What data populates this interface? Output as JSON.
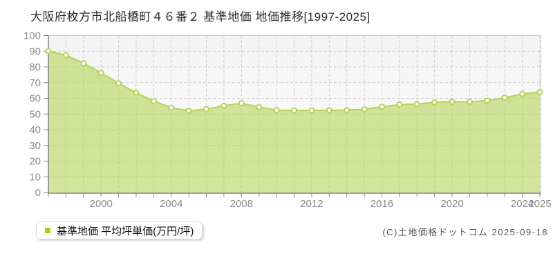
{
  "chart_data": {
    "type": "area",
    "title": "大阪府枚方市北船橋町４６番２ 基準地価 地価推移[1997-2025]",
    "categories": [
      1997,
      1998,
      1999,
      2000,
      2001,
      2002,
      2003,
      2004,
      2005,
      2006,
      2007,
      2008,
      2009,
      2010,
      2011,
      2012,
      2013,
      2014,
      2015,
      2016,
      2017,
      2018,
      2019,
      2020,
      2021,
      2022,
      2023,
      2024,
      2025
    ],
    "series": [
      {
        "name": "基準地価 平均坪単価(万円/坪)",
        "values": [
          90.1,
          87.5,
          82.3,
          76.2,
          69.6,
          63.5,
          58.2,
          54.0,
          52.1,
          53.1,
          55.3,
          56.9,
          54.4,
          52.4,
          52.3,
          52.3,
          52.4,
          52.5,
          53.0,
          54.6,
          56.0,
          56.3,
          57.4,
          57.8,
          57.8,
          58.5,
          60.4,
          62.8,
          64.0
        ]
      }
    ],
    "xlabel": "",
    "ylabel": "",
    "ylim": [
      0,
      100
    ],
    "y_tick_step": 10,
    "x_labeled_ticks": [
      2000,
      2004,
      2008,
      2012,
      2016,
      2020,
      2024,
      2025
    ],
    "grid": true,
    "legend_position": "bottom-left",
    "colors": {
      "area_fill": "#b5d457",
      "area_fill_opacity": "0.6",
      "line": "#b3d355",
      "marker_fill": "#ffffff",
      "marker_stroke": "#b3d355",
      "legend_marker": "#a9cf1e",
      "grid": "#cccccc",
      "border": "#cccccc",
      "axis": "#848484",
      "tick_label": "#8a8a8a",
      "plot_bg_top": "#f3f3f3",
      "plot_bg_bottom": "#ffffff"
    }
  },
  "footer": {
    "copyright": "(C)土地価格ドットコム 2025-09-18"
  }
}
